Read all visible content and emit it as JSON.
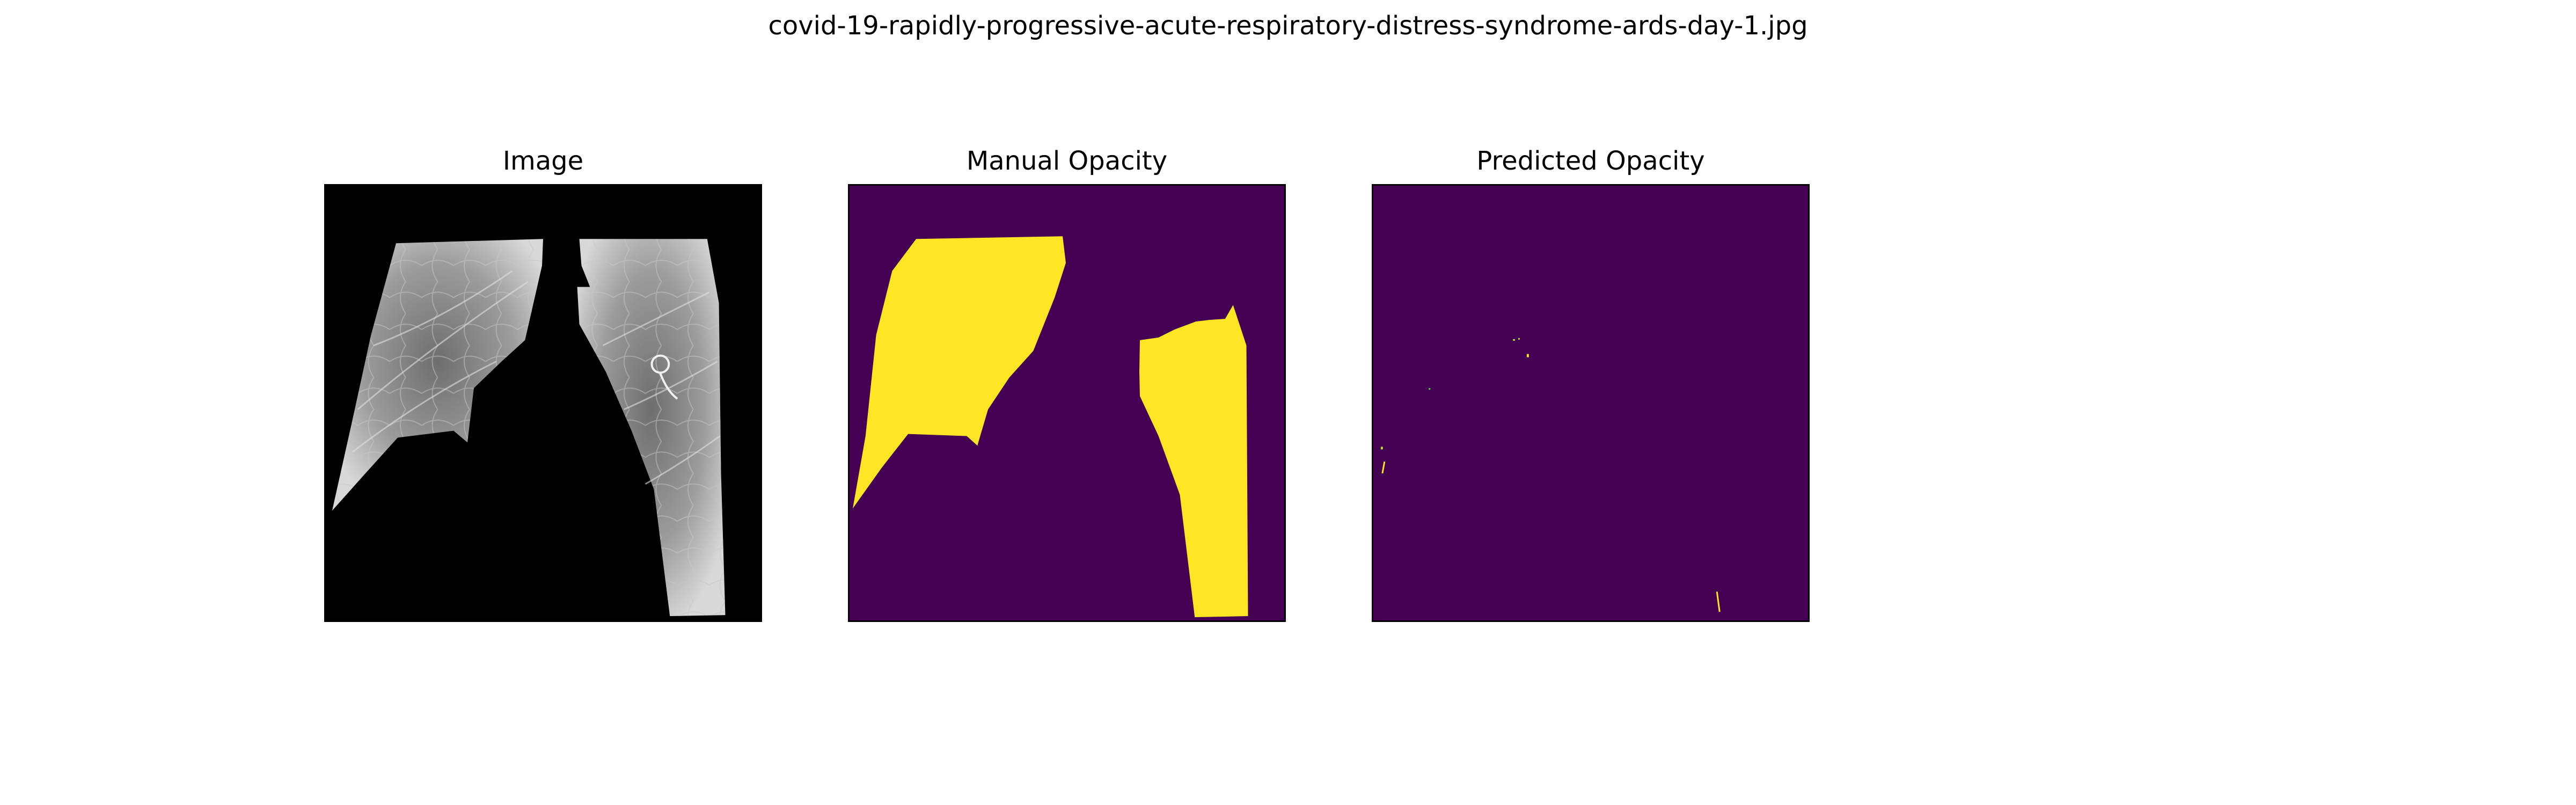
{
  "figure": {
    "title": "covid-19-rapidly-progressive-acute-respiratory-distress-syndrome-ards-day-1.jpg"
  },
  "panels": [
    {
      "title": "Image"
    },
    {
      "title": "Manual Opacity"
    },
    {
      "title": "Predicted Opacity"
    }
  ],
  "colors": {
    "background": "#000000",
    "mask_background": "#440154",
    "mask_foreground": "#fde725",
    "lung_tissue": "#9a9a9a"
  }
}
